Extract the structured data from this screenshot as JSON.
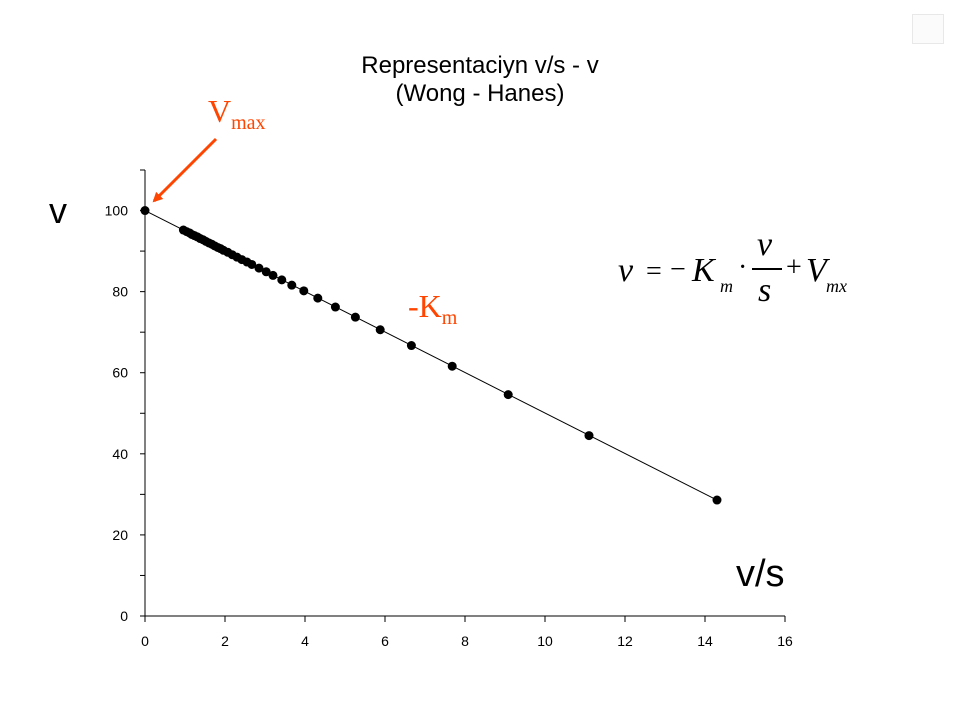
{
  "title_line1": "Representaciyn v/s - v",
  "title_line2": "(Wong - Hanes)",
  "ylabel": "v",
  "xlabel": "v/s",
  "annotations": {
    "vmax_main": "V",
    "vmax_sub": "max",
    "km_main": "-K",
    "km_sub": "m",
    "arrow_color": "#ff4500"
  },
  "equation": {
    "lhs": "v",
    "equals": "=",
    "minus": "−",
    "K": "K",
    "K_sub": "m",
    "dot": "·",
    "numerator": "v",
    "denominator": "s",
    "plus": "+",
    "V": "V",
    "V_sub": "mx"
  },
  "chart_data": {
    "type": "scatter",
    "title": "Representaciyn v/s - v (Wong - Hanes)",
    "xlabel": "v/s",
    "ylabel": "v",
    "xlim": [
      0,
      16
    ],
    "ylim": [
      0,
      110
    ],
    "xticks": [
      0,
      2,
      4,
      6,
      8,
      10,
      12,
      14,
      16
    ],
    "yticks": [
      0,
      20,
      40,
      60,
      80,
      100
    ],
    "grid": false,
    "fit_line": {
      "from": [
        0,
        100
      ],
      "to": [
        14.3,
        28.6
      ]
    },
    "series": [
      {
        "marker_color": "#000000",
        "x": [
          0.0,
          0.96,
          1.04,
          1.11,
          1.17,
          1.24,
          1.31,
          1.38,
          1.45,
          1.52,
          1.6,
          1.67,
          1.74,
          1.82,
          1.89,
          1.96,
          2.07,
          2.18,
          2.3,
          2.42,
          2.55,
          2.67,
          2.85,
          3.03,
          3.2,
          3.42,
          3.67,
          3.97,
          4.32,
          4.76,
          5.26,
          5.88,
          6.66,
          7.68,
          9.08,
          11.1,
          14.3
        ],
        "y": [
          100,
          95.2,
          94.8,
          94.5,
          94.1,
          93.8,
          93.5,
          93.1,
          92.8,
          92.4,
          92.0,
          91.7,
          91.3,
          90.9,
          90.6,
          90.2,
          89.7,
          89.1,
          88.5,
          87.9,
          87.3,
          86.7,
          85.8,
          84.9,
          84.0,
          82.9,
          81.6,
          80.2,
          78.4,
          76.2,
          73.7,
          70.6,
          66.7,
          61.6,
          54.6,
          44.5,
          28.6
        ]
      }
    ]
  }
}
